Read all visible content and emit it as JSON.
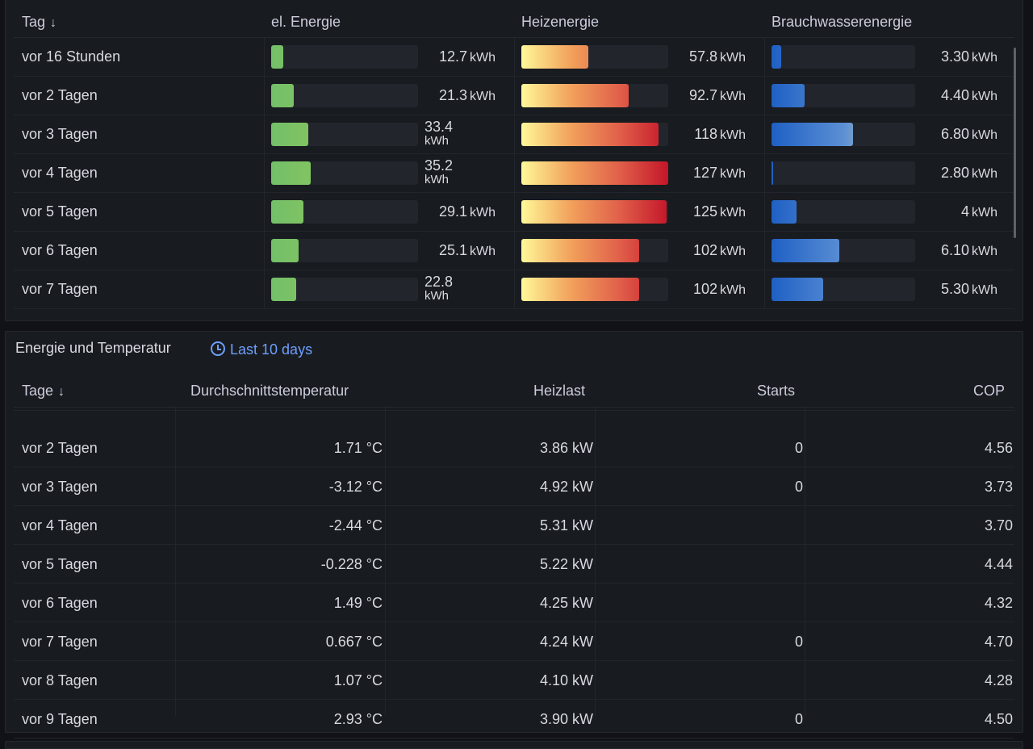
{
  "table1": {
    "headers": {
      "day": "Tag",
      "elec": "el. Energie",
      "heat": "Heizenergie",
      "water": "Brauchwasserenergie"
    },
    "sort_icon": "arrow-down-icon",
    "unit": "kWh",
    "rows": [
      {
        "day": "vor 16 Stunden",
        "elec": "12.7",
        "elec_frac": 0.08,
        "heat": "57.8",
        "heat_frac": 0.455,
        "water": "3.30",
        "water_frac": 0.07
      },
      {
        "day": "vor 2 Tagen",
        "elec": "21.3",
        "elec_frac": 0.155,
        "heat": "92.7",
        "heat_frac": 0.73,
        "water": "4.40",
        "water_frac": 0.23
      },
      {
        "day": "vor 3 Tagen",
        "elec": "33.4",
        "elec_frac": 0.255,
        "heat": "118",
        "heat_frac": 0.935,
        "water": "6.80",
        "water_frac": 0.57
      },
      {
        "day": "vor 4 Tagen",
        "elec": "35.2",
        "elec_frac": 0.27,
        "heat": "127",
        "heat_frac": 1.0,
        "water": "2.80",
        "water_frac": 0.012
      },
      {
        "day": "vor 5 Tagen",
        "elec": "29.1",
        "elec_frac": 0.22,
        "heat": "125",
        "heat_frac": 0.99,
        "water": "4",
        "water_frac": 0.175
      },
      {
        "day": "vor 6 Tagen",
        "elec": "25.1",
        "elec_frac": 0.185,
        "heat": "102",
        "heat_frac": 0.8,
        "water": "6.10",
        "water_frac": 0.47
      },
      {
        "day": "vor 7 Tagen",
        "elec": "22.8",
        "elec_frac": 0.17,
        "heat": "102",
        "heat_frac": 0.8,
        "water": "5.30",
        "water_frac": 0.36
      }
    ]
  },
  "panel2": {
    "title": "Energie und Temperatur",
    "time_range": "Last 10 days",
    "time_icon": "clock-icon",
    "headers": {
      "day": "Tage",
      "temp": "Durchschnittstemperatur",
      "load": "Heizlast",
      "starts": "Starts",
      "cop": "COP"
    },
    "rows": [
      {
        "day": "",
        "temp": "",
        "load": "",
        "starts": "",
        "cop": ""
      },
      {
        "day": "vor 2 Tagen",
        "temp": "1.71 °C",
        "load": "3.86 kW",
        "starts": "0",
        "cop": "4.56"
      },
      {
        "day": "vor 3 Tagen",
        "temp": "-3.12 °C",
        "load": "4.92 kW",
        "starts": "0",
        "cop": "3.73"
      },
      {
        "day": "vor 4 Tagen",
        "temp": "-2.44 °C",
        "load": "5.31 kW",
        "starts": "",
        "cop": "3.70"
      },
      {
        "day": "vor 5 Tagen",
        "temp": "-0.228 °C",
        "load": "5.22 kW",
        "starts": "",
        "cop": "4.44"
      },
      {
        "day": "vor 6 Tagen",
        "temp": "1.49 °C",
        "load": "4.25 kW",
        "starts": "",
        "cop": "4.32"
      },
      {
        "day": "vor 7 Tagen",
        "temp": "0.667 °C",
        "load": "4.24 kW",
        "starts": "0",
        "cop": "4.70"
      },
      {
        "day": "vor 8 Tagen",
        "temp": "1.07 °C",
        "load": "4.10 kW",
        "starts": "",
        "cop": "4.28"
      },
      {
        "day": "vor 9 Tagen",
        "temp": "2.93 °C",
        "load": "3.90 kW",
        "starts": "0",
        "cop": "4.50"
      }
    ]
  },
  "colors": {
    "elec_gradient": [
      "#73bf69",
      "#a9d04c"
    ],
    "heat_gradient": [
      "#fff899",
      "#f2a25c",
      "#e0604a",
      "#c4162a"
    ],
    "water_gradient": [
      "#1f60c4",
      "#5b8fd4",
      "#fff899"
    ],
    "link": "#6e9fff"
  }
}
